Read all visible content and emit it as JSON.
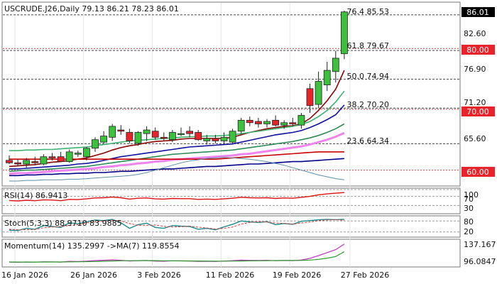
{
  "main_pane": {
    "header": "USCRUDE.J26,Daily  79.13 86.21 78.23 86.01",
    "price_labels": [
      "82.60",
      "76.90",
      "71.20",
      "65.60"
    ],
    "price_badge": "86.01",
    "level_badges": [
      "80.00",
      "70.00",
      "60.00"
    ],
    "fib_labels": [
      "76.4 85.53",
      "61.8 79.67",
      "50.0 74.94",
      "38.2 70.20",
      "23.6 64.34"
    ],
    "colors": {
      "bull": "#3cc13c",
      "bear": "#e8232a",
      "badge": "#e8232a"
    }
  },
  "rsi_pane": {
    "label": "RSI(14) 86.9413",
    "levels": [
      "100",
      "70",
      "30"
    ]
  },
  "stoch_pane": {
    "label": "Stoch(5,3,3) 88.9710 83.9885",
    "levels": [
      "80",
      "20"
    ]
  },
  "momentum_pane": {
    "label": "Momentum(14) 135.2997  ->MA(7) 119.8554",
    "levels": [
      "137.167",
      "96.0847"
    ]
  },
  "x_axis": {
    "labels": [
      "16 Jan 2026",
      "26 Jan 2026",
      "3 Feb 2026",
      "11 Feb 2026",
      "19 Feb 2026",
      "27 Feb 2026"
    ]
  },
  "chart_data": {
    "type": "candlestick",
    "symbol": "USCRUDE.J26",
    "timeframe": "Daily",
    "ylim": [
      57.5,
      87.5
    ],
    "ohlc": [
      {
        "o": 61.6,
        "h": 62.4,
        "l": 61.0,
        "c": 61.2
      },
      {
        "o": 61.2,
        "h": 61.8,
        "l": 60.6,
        "c": 61.0
      },
      {
        "o": 61.0,
        "h": 62.0,
        "l": 60.4,
        "c": 61.6
      },
      {
        "o": 61.4,
        "h": 62.2,
        "l": 60.8,
        "c": 61.2
      },
      {
        "o": 61.0,
        "h": 62.6,
        "l": 60.8,
        "c": 62.2
      },
      {
        "o": 62.2,
        "h": 62.8,
        "l": 61.6,
        "c": 62.0
      },
      {
        "o": 62.2,
        "h": 63.0,
        "l": 61.4,
        "c": 61.4
      },
      {
        "o": 61.4,
        "h": 63.4,
        "l": 61.2,
        "c": 63.0
      },
      {
        "o": 62.6,
        "h": 63.2,
        "l": 62.2,
        "c": 62.8
      },
      {
        "o": 62.2,
        "h": 63.8,
        "l": 61.6,
        "c": 63.6
      },
      {
        "o": 63.6,
        "h": 65.4,
        "l": 63.0,
        "c": 65.0
      },
      {
        "o": 64.6,
        "h": 66.4,
        "l": 64.4,
        "c": 65.6
      },
      {
        "o": 65.4,
        "h": 67.6,
        "l": 64.8,
        "c": 67.2
      },
      {
        "o": 66.6,
        "h": 67.4,
        "l": 65.8,
        "c": 66.4
      },
      {
        "o": 66.2,
        "h": 66.8,
        "l": 64.4,
        "c": 64.8
      },
      {
        "o": 64.4,
        "h": 66.4,
        "l": 64.0,
        "c": 66.2
      },
      {
        "o": 66.0,
        "h": 67.2,
        "l": 64.8,
        "c": 66.6
      },
      {
        "o": 66.4,
        "h": 67.0,
        "l": 65.0,
        "c": 65.4
      },
      {
        "o": 65.4,
        "h": 66.2,
        "l": 64.8,
        "c": 65.2
      },
      {
        "o": 65.0,
        "h": 66.6,
        "l": 64.6,
        "c": 66.2
      },
      {
        "o": 66.0,
        "h": 67.0,
        "l": 65.6,
        "c": 66.0
      },
      {
        "o": 66.4,
        "h": 67.2,
        "l": 65.4,
        "c": 66.0
      },
      {
        "o": 66.2,
        "h": 66.6,
        "l": 64.8,
        "c": 65.0
      },
      {
        "o": 64.8,
        "h": 65.8,
        "l": 64.2,
        "c": 65.2
      },
      {
        "o": 65.2,
        "h": 65.8,
        "l": 64.4,
        "c": 64.8
      },
      {
        "o": 64.8,
        "h": 66.2,
        "l": 64.4,
        "c": 65.4
      },
      {
        "o": 64.6,
        "h": 66.8,
        "l": 64.2,
        "c": 66.4
      },
      {
        "o": 66.4,
        "h": 68.6,
        "l": 66.0,
        "c": 68.2
      },
      {
        "o": 68.2,
        "h": 68.8,
        "l": 67.2,
        "c": 67.8
      },
      {
        "o": 68.0,
        "h": 68.6,
        "l": 67.0,
        "c": 67.6
      },
      {
        "o": 67.6,
        "h": 68.4,
        "l": 67.0,
        "c": 68.0
      },
      {
        "o": 68.2,
        "h": 69.0,
        "l": 67.2,
        "c": 67.4
      },
      {
        "o": 67.4,
        "h": 68.2,
        "l": 66.8,
        "c": 67.8
      },
      {
        "o": 67.8,
        "h": 68.6,
        "l": 67.2,
        "c": 67.6
      },
      {
        "o": 67.4,
        "h": 69.4,
        "l": 66.8,
        "c": 69.0
      },
      {
        "o": 73.4,
        "h": 74.2,
        "l": 69.4,
        "c": 70.6
      },
      {
        "o": 70.8,
        "h": 76.2,
        "l": 70.2,
        "c": 74.6
      },
      {
        "o": 74.0,
        "h": 77.8,
        "l": 73.0,
        "c": 76.4
      },
      {
        "o": 76.2,
        "h": 79.6,
        "l": 74.4,
        "c": 78.4
      },
      {
        "o": 79.13,
        "h": 86.21,
        "l": 78.23,
        "c": 86.01
      }
    ],
    "moving_averages": [
      {
        "color": "#8b0000",
        "values": [
          60.6,
          60.7,
          60.8,
          60.9,
          61.1,
          61.3,
          61.4,
          61.6,
          61.8,
          62.0,
          62.4,
          62.8,
          63.3,
          63.7,
          64.0,
          64.2,
          64.5,
          64.7,
          64.8,
          64.9,
          65.1,
          65.2,
          65.2,
          65.2,
          65.2,
          65.2,
          65.4,
          65.8,
          66.2,
          66.5,
          66.8,
          67.0,
          67.2,
          67.3,
          67.6,
          68.5,
          69.8,
          71.4,
          73.3,
          76.4
        ]
      },
      {
        "color": "#1010a0",
        "values": [
          60.2,
          60.2,
          60.3,
          60.4,
          60.5,
          60.6,
          60.7,
          60.8,
          61.0,
          61.1,
          61.3,
          61.6,
          61.9,
          62.2,
          62.4,
          62.6,
          62.8,
          63.0,
          63.2,
          63.4,
          63.6,
          63.8,
          63.9,
          64.0,
          64.1,
          64.2,
          64.3,
          64.6,
          64.9,
          65.2,
          65.5,
          65.8,
          66.0,
          66.2,
          66.5,
          67.0,
          67.6,
          68.3,
          69.1,
          70.7
        ]
      },
      {
        "color": "#2e8b57",
        "values": [
          59.8,
          59.9,
          60.0,
          60.0,
          60.1,
          60.2,
          60.3,
          60.4,
          60.5,
          60.6,
          60.8,
          61.0,
          61.2,
          61.4,
          61.6,
          61.8,
          62.0,
          62.2,
          62.4,
          62.6,
          62.7,
          62.8,
          62.9,
          63.0,
          63.1,
          63.2,
          63.3,
          63.5,
          63.7,
          63.9,
          64.1,
          64.3,
          64.5,
          64.7,
          65.0,
          65.3,
          65.7,
          66.2,
          66.8,
          67.6
        ]
      },
      {
        "color": "#ee82ee",
        "values": [
          59.4,
          59.5,
          59.5,
          59.6,
          59.7,
          59.8,
          59.9,
          60.0,
          60.1,
          60.2,
          60.3,
          60.5,
          60.6,
          60.8,
          60.9,
          61.1,
          61.2,
          61.4,
          61.5,
          61.7,
          61.8,
          61.9,
          62.0,
          62.1,
          62.2,
          62.3,
          62.4,
          62.6,
          62.7,
          62.9,
          63.1,
          63.3,
          63.5,
          63.7,
          63.9,
          64.2,
          64.6,
          65.0,
          65.5,
          66.1
        ]
      },
      {
        "color": "#cc0000",
        "values": [
          61.8,
          61.8,
          61.8,
          61.8,
          61.8,
          61.8,
          61.8,
          61.8,
          61.8,
          61.8,
          61.8,
          61.8,
          61.8,
          61.8,
          61.8,
          61.8,
          61.8,
          61.8,
          61.8,
          61.8,
          61.8,
          61.8,
          61.8,
          61.8,
          61.8,
          61.9,
          62.0,
          62.1,
          62.2,
          62.3,
          62.4,
          62.5,
          62.6,
          62.7,
          62.8,
          62.9,
          63.0,
          63.0,
          63.0,
          63.0
        ]
      },
      {
        "color": "#00008b",
        "values": [
          59.1,
          59.1,
          59.2,
          59.2,
          59.3,
          59.3,
          59.4,
          59.4,
          59.5,
          59.5,
          59.6,
          59.6,
          59.7,
          59.8,
          59.8,
          59.9,
          60.0,
          60.1,
          60.2,
          60.2,
          60.3,
          60.4,
          60.5,
          60.6,
          60.6,
          60.7,
          60.8,
          60.9,
          61.0,
          61.0,
          61.1,
          61.2,
          61.3,
          61.4,
          61.4,
          61.5,
          61.6,
          61.7,
          61.8,
          61.9
        ]
      },
      {
        "color": "#3cb371",
        "values": [
          63.2,
          63.2,
          63.3,
          63.3,
          63.4,
          63.4,
          63.5,
          63.6,
          63.7,
          63.8,
          64.0,
          64.2,
          64.4,
          64.6,
          64.8,
          64.9,
          65.0,
          65.1,
          65.2,
          65.3,
          65.4,
          65.5,
          65.5,
          65.6,
          65.6,
          65.7,
          65.8,
          66.0,
          66.2,
          66.4,
          66.6,
          66.8,
          67.0,
          67.2,
          67.5,
          68.0,
          68.8,
          69.8,
          71.2,
          73.0
        ]
      },
      {
        "color": "#5f8ea8",
        "values": [
          58.2,
          58.2,
          58.3,
          58.3,
          58.4,
          58.4,
          58.4,
          58.5,
          58.5,
          58.6,
          58.7,
          58.8,
          58.9,
          59.0,
          59.1,
          59.3,
          59.6,
          60.0,
          60.4,
          60.8,
          61.2,
          61.5,
          61.7,
          61.9,
          62.0,
          62.1,
          62.0,
          61.9,
          61.8,
          61.6,
          61.4,
          61.1,
          60.8,
          60.4,
          60.0,
          59.6,
          59.2,
          58.9,
          58.6,
          58.4
        ]
      }
    ],
    "fib_levels": [
      {
        "pct": "76.4",
        "value": 85.53
      },
      {
        "pct": "61.8",
        "value": 79.67
      },
      {
        "pct": "50.0",
        "value": 74.94
      },
      {
        "pct": "38.2",
        "value": 70.2
      },
      {
        "pct": "23.6",
        "value": 64.34
      }
    ],
    "horizontal_levels": [
      80.0,
      70.0,
      60.0
    ],
    "rsi": {
      "range": [
        0,
        100
      ],
      "levels": [
        100,
        70,
        30
      ],
      "values": [
        52,
        50,
        53,
        51,
        55,
        54,
        51,
        57,
        56,
        59,
        63,
        64,
        67,
        64,
        58,
        62,
        63,
        59,
        58,
        61,
        60,
        60,
        57,
        58,
        57,
        59,
        62,
        66,
        64,
        63,
        64,
        61,
        63,
        62,
        66,
        70,
        77,
        81,
        84,
        86.94
      ]
    },
    "stoch": {
      "range": [
        0,
        100
      ],
      "levels": [
        80,
        20
      ],
      "k": [
        30,
        28,
        40,
        35,
        55,
        50,
        45,
        70,
        65,
        75,
        85,
        82,
        88,
        70,
        40,
        60,
        68,
        45,
        40,
        55,
        52,
        50,
        35,
        40,
        32,
        48,
        62,
        80,
        75,
        72,
        76,
        60,
        66,
        62,
        78,
        82,
        86,
        88,
        87,
        88.97
      ],
      "d": [
        35,
        32,
        33,
        34,
        43,
        47,
        50,
        55,
        60,
        70,
        75,
        80,
        84,
        80,
        66,
        56,
        56,
        58,
        51,
        47,
        49,
        52,
        46,
        42,
        36,
        40,
        47,
        63,
        72,
        76,
        74,
        69,
        67,
        63,
        69,
        74,
        82,
        85,
        87,
        83.99
      ]
    },
    "momentum": {
      "range": [
        92,
        142
      ],
      "levels": [
        137.167,
        96.0847
      ],
      "value": [
        99,
        98.6,
        99.2,
        98.8,
        99.6,
        99.4,
        99,
        100.4,
        100,
        100.8,
        102,
        102.6,
        103.4,
        102.6,
        101,
        101.8,
        102.2,
        100.8,
        100.6,
        101.6,
        101.4,
        101.2,
        100.4,
        100.6,
        100.2,
        101,
        101.8,
        103,
        102.4,
        102.2,
        102.6,
        101.8,
        102.2,
        101.8,
        103.2,
        106.4,
        112,
        118,
        124,
        135.2997
      ],
      "ma": [
        99.2,
        99,
        99,
        99,
        99.2,
        99.2,
        99.2,
        99.4,
        99.6,
        99.8,
        100.2,
        100.7,
        101.2,
        101.6,
        101.7,
        101.9,
        102,
        101.8,
        101.6,
        101.4,
        101.3,
        101.3,
        101.2,
        101,
        100.9,
        100.9,
        101,
        101.2,
        101.4,
        101.6,
        101.9,
        102,
        102.1,
        102.1,
        102.3,
        103,
        104.5,
        106.8,
        110.2,
        119.8554
      ]
    }
  }
}
